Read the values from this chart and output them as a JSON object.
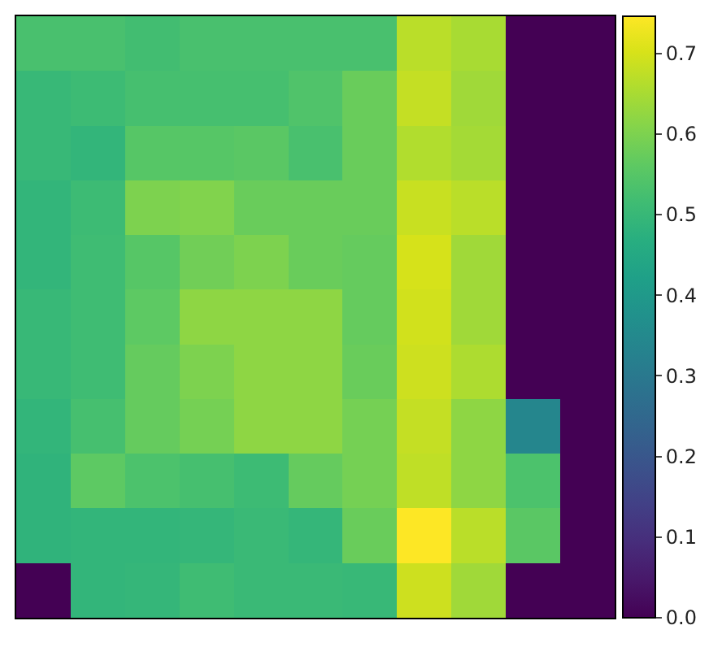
{
  "chart_data": {
    "type": "heatmap",
    "categories": [
      null,
      null,
      null,
      null,
      null,
      null,
      null,
      null,
      null,
      null,
      null
    ],
    "y_categories": [
      null,
      null,
      null,
      null,
      null,
      null,
      null,
      null,
      null,
      null,
      null
    ],
    "cells": [
      [
        0.53,
        0.53,
        0.52,
        0.53,
        0.53,
        0.53,
        0.53,
        0.67,
        0.65,
        0,
        0
      ],
      [
        0.5,
        0.51,
        0.525,
        0.525,
        0.525,
        0.54,
        0.575,
        0.68,
        0.64,
        0,
        0
      ],
      [
        0.5,
        0.49,
        0.55,
        0.55,
        0.555,
        0.53,
        0.575,
        0.66,
        0.645,
        0,
        0
      ],
      [
        0.49,
        0.51,
        0.6,
        0.605,
        0.575,
        0.575,
        0.575,
        0.685,
        0.67,
        0,
        0
      ],
      [
        0.49,
        0.515,
        0.55,
        0.585,
        0.6,
        0.575,
        0.57,
        0.7,
        0.64,
        0,
        0
      ],
      [
        0.5,
        0.515,
        0.56,
        0.62,
        0.62,
        0.62,
        0.57,
        0.695,
        0.64,
        0,
        0
      ],
      [
        0.5,
        0.515,
        0.57,
        0.6,
        0.62,
        0.62,
        0.575,
        0.69,
        0.655,
        0,
        0
      ],
      [
        0.49,
        0.525,
        0.57,
        0.59,
        0.62,
        0.62,
        0.59,
        0.68,
        0.62,
        0.34,
        0
      ],
      [
        0.485,
        0.56,
        0.535,
        0.525,
        0.51,
        0.57,
        0.59,
        0.675,
        0.62,
        0.535,
        0
      ],
      [
        0.485,
        0.49,
        0.49,
        0.495,
        0.505,
        0.495,
        0.575,
        0.746,
        0.67,
        0.555,
        0
      ],
      [
        0,
        0.49,
        0.495,
        0.515,
        0.505,
        0.505,
        0.5,
        0.69,
        0.64,
        0,
        0
      ]
    ],
    "clim": [
      0,
      0.746
    ],
    "cticks": [
      {
        "value": 0,
        "label": "0.0"
      },
      0.1,
      0.2,
      0.3,
      0.4,
      0.5,
      0.6,
      0.7
    ]
  }
}
